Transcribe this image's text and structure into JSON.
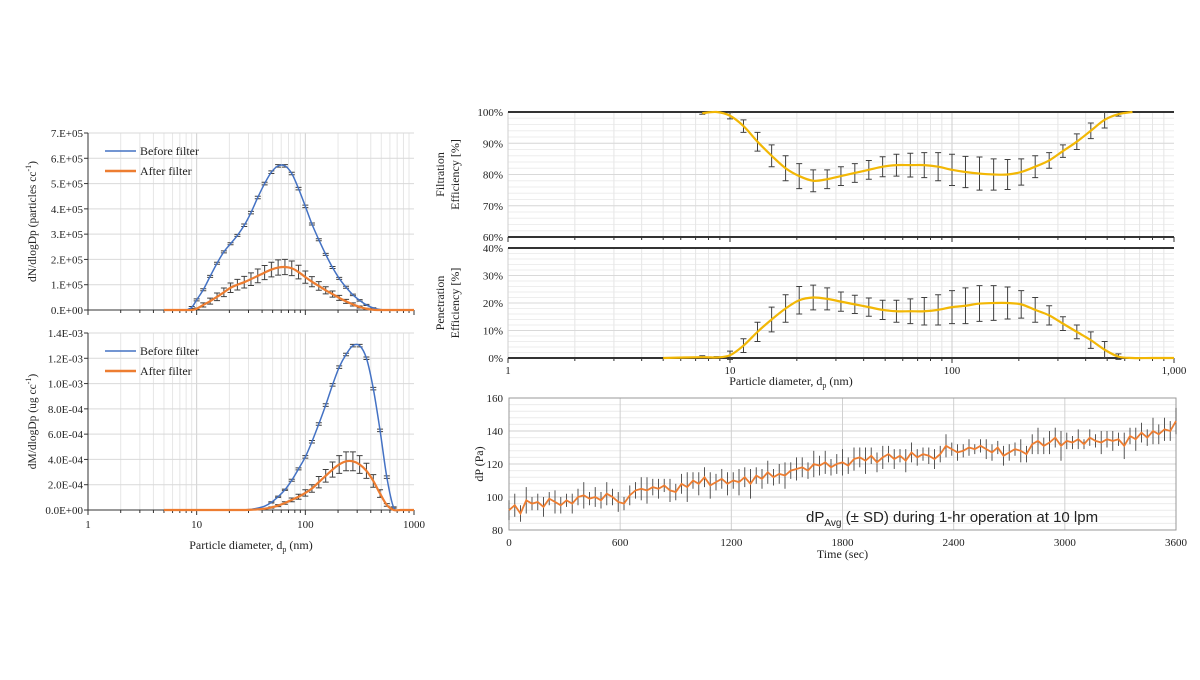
{
  "colors": {
    "before": "#4472C4",
    "after": "#ED7D31",
    "efficiency": "#F2B705",
    "errorbar": "#404040",
    "dp_line": "#ED7D31",
    "dp_sd": "#555555",
    "grid": "#D9D9D9"
  },
  "chart_data": [
    {
      "id": "number",
      "type": "line",
      "ylabel": "dN/dlogDp (particles cc",
      "ylabel_sup": "-1",
      "ylabel_end": ")",
      "xscale": "log",
      "xlim": [
        1,
        1000
      ],
      "ylim": [
        0,
        700000
      ],
      "yticks": [
        "0.E+00",
        "1.E+05",
        "2.E+05",
        "3.E+05",
        "4.E+05",
        "5.E+05",
        "6.E+05",
        "7.E+05"
      ],
      "grid": true,
      "legend": "top-left",
      "x": [
        5,
        7,
        8,
        9,
        10,
        11.5,
        13.3,
        15.4,
        17.8,
        20.5,
        23.7,
        27.4,
        31.6,
        36.5,
        42.2,
        48.7,
        56.2,
        64.9,
        75,
        86.6,
        100,
        115,
        133,
        154,
        178,
        205,
        237,
        274,
        316,
        365,
        422,
        487,
        562,
        649,
        750,
        866,
        1000
      ],
      "series": [
        {
          "name": "Before filter",
          "values": [
            0,
            0,
            0,
            10000,
            40000,
            80000,
            133000,
            185000,
            230000,
            262000,
            295000,
            335000,
            385000,
            445000,
            500000,
            545000,
            570000,
            570000,
            540000,
            480000,
            410000,
            340000,
            278000,
            220000,
            168000,
            125000,
            90000,
            60000,
            38000,
            20000,
            8000,
            2000,
            0,
            0,
            0,
            0,
            0
          ],
          "errors": [
            0,
            0,
            0,
            4000,
            4000,
            4000,
            4000,
            4000,
            4000,
            4000,
            4000,
            5000,
            5000,
            5000,
            5000,
            5000,
            5000,
            5000,
            5000,
            5000,
            5000,
            4000,
            4000,
            4000,
            4000,
            4000,
            4000,
            3000,
            3000,
            2000,
            1000,
            0,
            0,
            0,
            0,
            0,
            0
          ]
        },
        {
          "name": "After filter",
          "values": [
            0,
            0,
            0,
            0,
            5000,
            20000,
            35000,
            52000,
            70000,
            88000,
            100000,
            110000,
            122000,
            135000,
            148000,
            160000,
            168000,
            170000,
            165000,
            150000,
            130000,
            112000,
            95000,
            78000,
            63000,
            48000,
            34000,
            22000,
            12000,
            5000,
            1000,
            0,
            0,
            0,
            0,
            0,
            0
          ],
          "errors": [
            0,
            0,
            0,
            0,
            3000,
            8000,
            12000,
            15000,
            17000,
            19000,
            21000,
            23000,
            25000,
            27000,
            28000,
            29000,
            30000,
            30000,
            29000,
            27000,
            24000,
            20000,
            17000,
            14000,
            12000,
            10000,
            8000,
            6000,
            4000,
            2000,
            1000,
            0,
            0,
            0,
            0,
            0,
            0
          ]
        }
      ]
    },
    {
      "id": "mass",
      "type": "line",
      "ylabel": "dM/dlogDp (ug cc",
      "ylabel_sup": "-1",
      "ylabel_end": ")",
      "xlabel": "Particle diameter, d",
      "xlabel_sub": "p",
      "xlabel_end": " (nm)",
      "xscale": "log",
      "xlim": [
        1,
        1000
      ],
      "ylim": [
        0,
        0.0014
      ],
      "xticks": [
        "1",
        "10",
        "100",
        "1000"
      ],
      "yticks": [
        "0.0E+00",
        "2.0E-04",
        "4.0E-04",
        "6.0E-04",
        "8.0E-04",
        "1.0E-03",
        "1.2E-03",
        "1.4E-03"
      ],
      "grid": true,
      "legend": "top-left",
      "x": [
        5,
        7,
        8,
        9,
        10,
        11.5,
        13.3,
        15.4,
        17.8,
        20.5,
        23.7,
        27.4,
        31.6,
        36.5,
        42.2,
        48.7,
        56.2,
        64.9,
        75,
        86.6,
        100,
        115,
        133,
        154,
        178,
        205,
        237,
        274,
        316,
        365,
        422,
        487,
        562,
        649,
        750,
        866,
        1000
      ],
      "series": [
        {
          "name": "Before filter",
          "values": [
            0,
            0,
            0,
            0,
            0,
            0,
            0,
            0,
            0,
            0,
            0,
            1e-06,
            5e-06,
            1.5e-05,
            3e-05,
            6e-05,
            0.000105,
            0.00016,
            0.000235,
            0.000325,
            0.00042,
            0.00054,
            0.00068,
            0.00083,
            0.00099,
            0.00113,
            0.00123,
            0.0013,
            0.0013,
            0.0012,
            0.00096,
            0.00063,
            0.00026,
            2e-05,
            0,
            0,
            0
          ],
          "errors": [
            0,
            0,
            0,
            0,
            0,
            0,
            0,
            0,
            0,
            0,
            0,
            0,
            0,
            0,
            0,
            5e-06,
            5e-06,
            5e-06,
            8e-06,
            8e-06,
            1e-05,
            1e-05,
            1e-05,
            1e-05,
            1e-05,
            1e-05,
            1e-05,
            1e-05,
            1e-05,
            1e-05,
            1e-05,
            1e-05,
            1e-05,
            5e-06,
            0,
            0,
            0
          ]
        },
        {
          "name": "After filter",
          "values": [
            0,
            0,
            0,
            0,
            0,
            0,
            0,
            0,
            0,
            0,
            0,
            0,
            2e-06,
            5e-06,
            1e-05,
            2e-05,
            3.5e-05,
            5.5e-05,
            8e-05,
            0.000105,
            0.000135,
            0.00017,
            0.00022,
            0.00027,
            0.00032,
            0.00036,
            0.000385,
            0.000385,
            0.00036,
            0.00031,
            0.00023,
            0.00013,
            4e-05,
            0,
            0,
            0,
            0
          ],
          "errors": [
            0,
            0,
            0,
            0,
            0,
            0,
            0,
            0,
            0,
            0,
            0,
            0,
            0,
            0,
            0,
            5e-06,
            8e-06,
            1e-05,
            1.5e-05,
            2e-05,
            2.5e-05,
            3e-05,
            4.5e-05,
            5e-05,
            6e-05,
            7e-05,
            7.5e-05,
            7.5e-05,
            7e-05,
            6e-05,
            5e-05,
            3e-05,
            1e-05,
            0,
            0,
            0,
            0
          ]
        }
      ]
    },
    {
      "id": "filtration",
      "type": "line",
      "ylabel": "Filtration",
      "ylabel2": "Efficiency [%]",
      "xscale": "log",
      "xlim": [
        1,
        1000
      ],
      "ylim": [
        60,
        100
      ],
      "yticks": [
        "60%",
        "70%",
        "80%",
        "90%",
        "100%"
      ],
      "grid": true,
      "x": [
        7.5,
        8.7,
        10,
        11.5,
        13.3,
        15.4,
        17.8,
        20.5,
        23.7,
        27.4,
        31.6,
        36.5,
        42.2,
        48.7,
        56.2,
        64.9,
        75,
        86.6,
        100,
        115,
        133,
        154,
        178,
        205,
        237,
        274,
        316,
        365,
        422,
        487,
        562,
        650
      ],
      "series": [
        {
          "values": [
            99.6,
            100,
            98.8,
            95.5,
            90.5,
            86,
            82,
            79.5,
            78,
            78.5,
            79.5,
            80.5,
            81.5,
            82.5,
            83,
            83,
            83,
            82.5,
            81.5,
            80.8,
            80.3,
            80,
            80,
            80.8,
            82.5,
            84.5,
            87.5,
            90.5,
            94,
            97.5,
            99.3,
            100
          ],
          "errors": [
            0.3,
            0,
            1,
            2,
            3,
            3.5,
            4,
            4,
            3.5,
            3,
            3,
            3,
            3,
            3.2,
            3.5,
            3.8,
            4,
            4.5,
            5,
            5,
            5.3,
            5,
            4.8,
            4.2,
            3.5,
            2.5,
            2,
            2.5,
            2.5,
            2.6,
            0.6,
            0
          ]
        }
      ]
    },
    {
      "id": "penetration",
      "type": "line",
      "ylabel": "Penetration",
      "ylabel2": "Efficiency [%]",
      "xlabel": "Particle diameter, d",
      "xlabel_sub": "p",
      "xlabel_end": " (nm)",
      "xscale": "log",
      "xlim": [
        1,
        1000
      ],
      "ylim": [
        0,
        40
      ],
      "xticks": [
        "1",
        "10",
        "100",
        "1,000"
      ],
      "yticks": [
        "0%",
        "10%",
        "20%",
        "30%",
        "40%"
      ],
      "grid": true,
      "x": [
        5,
        7.5,
        8.7,
        10,
        11.5,
        13.3,
        15.4,
        17.8,
        20.5,
        23.7,
        27.4,
        31.6,
        36.5,
        42.2,
        48.7,
        56.2,
        64.9,
        75,
        86.6,
        100,
        115,
        133,
        154,
        178,
        205,
        237,
        274,
        316,
        365,
        422,
        487,
        562,
        650,
        800,
        1000
      ],
      "series": [
        {
          "values": [
            0,
            0.3,
            0.2,
            1,
            4.5,
            9.5,
            14,
            18,
            21,
            22,
            21.5,
            20.5,
            19.5,
            18.5,
            17.5,
            17,
            17,
            17,
            17.5,
            18.5,
            19,
            19.8,
            20,
            20,
            19.5,
            17.5,
            15.5,
            12.5,
            9.5,
            6.5,
            3,
            0.5,
            0,
            0,
            0
          ],
          "errors": [
            0,
            0.5,
            0.3,
            1.5,
            2.5,
            3.5,
            4.5,
            5,
            5,
            4.5,
            4,
            3.5,
            3.3,
            3.3,
            3.5,
            4,
            4.5,
            5,
            5.5,
            6,
            6.5,
            6.5,
            6.3,
            5.8,
            5,
            4.5,
            3.5,
            2.5,
            2.5,
            3,
            3,
            1,
            0,
            0,
            0
          ]
        }
      ]
    },
    {
      "id": "pressure-drop",
      "type": "line",
      "ylabel": "dP (Pa)",
      "xlabel": "Time (sec)",
      "annotation": "dP",
      "annotation_sub": "Avg",
      "annotation_end": " (± SD) during 1-hr operation at 10 lpm",
      "xlim": [
        0,
        3600
      ],
      "ylim": [
        80,
        160
      ],
      "xticks": [
        "0",
        "600",
        "1200",
        "1800",
        "2400",
        "3000",
        "3600"
      ],
      "yticks": [
        "80",
        "100",
        "120",
        "140",
        "160"
      ],
      "grid": true,
      "series": [
        {
          "values": [
            92,
            95,
            90,
            98,
            96,
            97,
            94,
            99,
            97,
            95,
            98,
            96,
            100,
            101,
            99,
            100,
            98,
            102,
            100,
            97,
            96,
            101,
            104,
            105,
            104,
            106,
            105,
            107,
            104,
            103,
            108,
            106,
            110,
            108,
            112,
            107,
            109,
            111,
            108,
            110,
            109,
            112,
            108,
            113,
            111,
            115,
            112,
            114,
            113,
            116,
            117,
            118,
            116,
            120,
            119,
            121,
            118,
            120,
            121,
            119,
            123,
            124,
            122,
            125,
            121,
            124,
            126,
            123,
            125,
            122,
            127,
            124,
            126,
            125,
            123,
            126,
            131,
            129,
            127,
            128,
            130,
            129,
            131,
            129,
            127,
            130,
            125,
            127,
            129,
            128,
            126,
            132,
            134,
            131,
            133,
            136,
            131,
            134,
            133,
            135,
            132,
            136,
            134,
            133,
            135,
            134,
            135,
            131,
            137,
            135,
            139,
            136,
            140,
            138,
            141,
            140,
            146
          ],
          "errors": [
            6,
            7,
            5,
            8,
            4,
            5,
            6,
            4,
            7,
            5,
            4,
            6,
            5,
            8,
            4,
            6,
            5,
            7,
            5,
            6,
            4,
            6,
            5,
            7,
            8,
            5,
            6,
            4,
            7,
            5,
            6,
            9,
            5,
            7,
            6,
            8,
            5,
            6,
            7,
            5,
            8,
            6,
            9,
            5,
            6,
            7,
            5,
            6,
            8,
            5,
            7,
            6,
            5,
            8,
            6,
            7,
            5,
            6,
            8,
            5,
            7,
            6,
            8,
            5,
            6,
            7,
            5,
            6,
            4,
            7,
            6,
            5,
            4,
            5,
            6,
            5,
            7,
            4,
            5,
            4,
            5,
            3,
            4,
            6,
            5,
            4,
            6,
            5,
            4,
            7,
            5,
            6,
            8,
            5,
            7,
            6,
            9,
            5,
            4,
            6,
            3,
            5,
            4,
            7,
            5,
            6,
            4,
            8,
            5,
            7,
            6,
            5,
            8,
            6,
            7,
            6,
            8
          ]
        }
      ]
    }
  ]
}
